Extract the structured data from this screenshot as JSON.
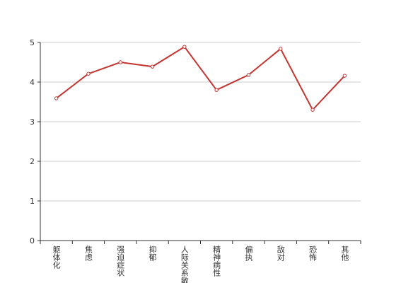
{
  "chart_data": {
    "type": "line",
    "categories": [
      "躯体化",
      "焦虑",
      "强迫症状",
      "抑郁",
      "人际关系敏感",
      "精神病性",
      "偏执",
      "敌对",
      "恐怖",
      "其他"
    ],
    "values": [
      3.59,
      4.21,
      4.5,
      4.39,
      4.89,
      3.8,
      4.18,
      4.84,
      3.3,
      4.16
    ],
    "color": "#c23531",
    "ylim": [
      0,
      5
    ],
    "yticks": [
      0,
      1,
      2,
      3,
      4,
      5
    ],
    "grid": true
  }
}
